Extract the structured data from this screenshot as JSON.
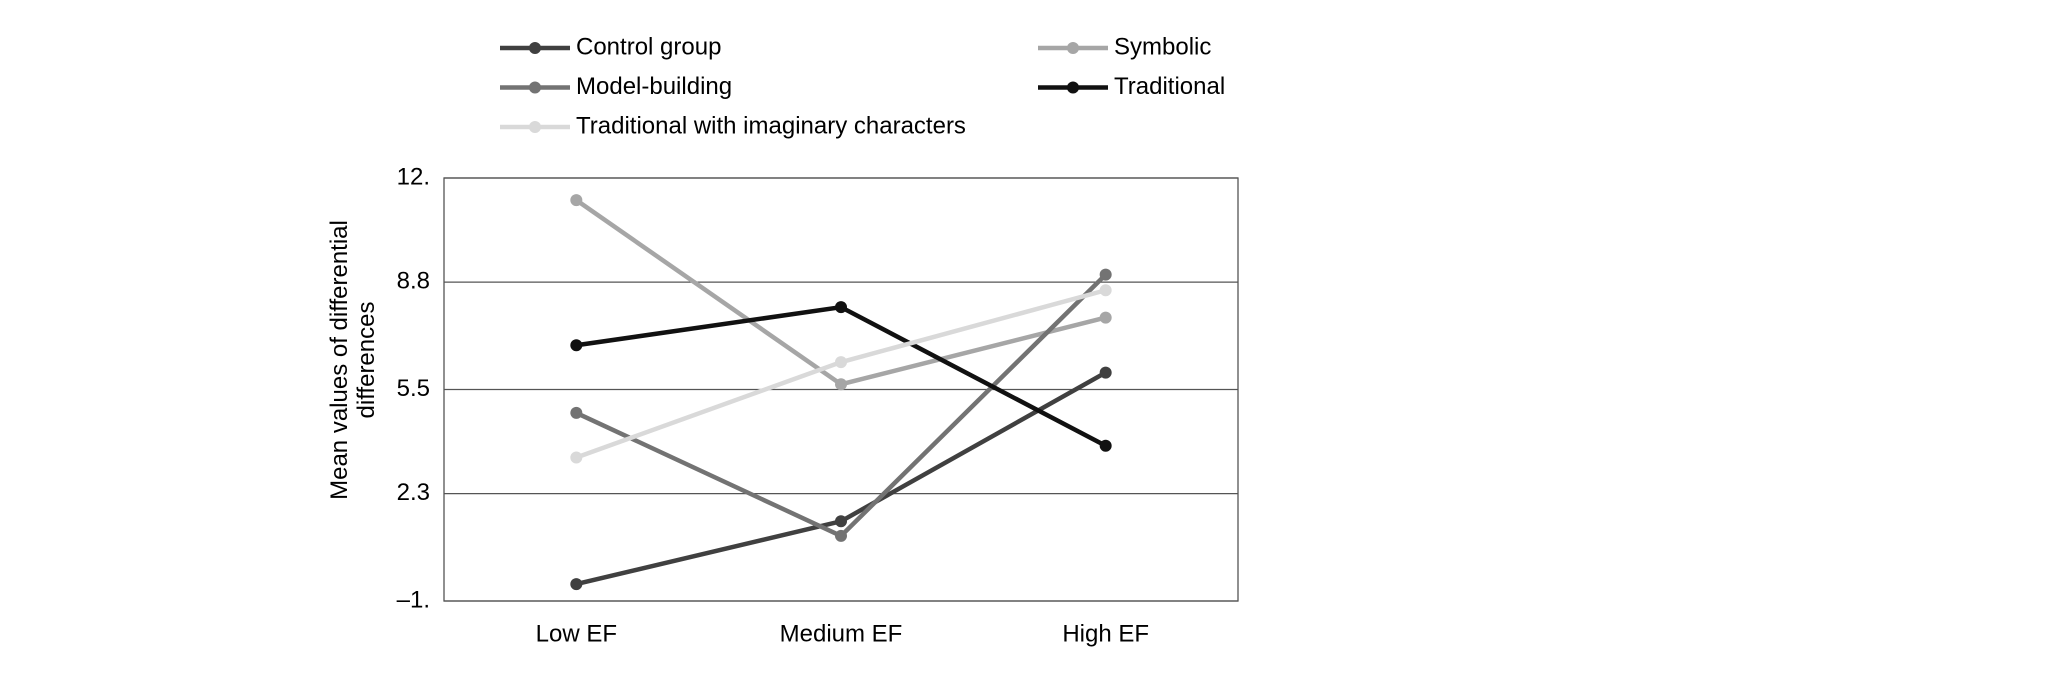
{
  "chart_data": {
    "type": "line",
    "y_label": "Mean values of differential differences",
    "categories": [
      "Low EF",
      "Medium EF",
      "High EF"
    ],
    "series": [
      {
        "name": "Control group",
        "color": "#404040",
        "values": [
          -0.48,
          1.45,
          6.02
        ]
      },
      {
        "name": "Symbolic",
        "color": "#a6a6a6",
        "values": [
          11.32,
          5.66,
          7.71
        ]
      },
      {
        "name": "Model-building",
        "color": "#737373",
        "values": [
          4.78,
          1.0,
          9.03
        ]
      },
      {
        "name": "Traditional",
        "color": "#111111",
        "values": [
          6.86,
          8.03,
          3.77
        ]
      },
      {
        "name": "Traditional with imaginary characters",
        "color": "#d9d9d9",
        "values": [
          3.41,
          6.34,
          8.55
        ]
      }
    ],
    "ylim": [
      -1,
      12
    ],
    "yticks": [
      {
        "value": -1,
        "label": "–1."
      },
      2.3,
      5.5,
      8.8,
      {
        "value": 12,
        "label": "12."
      }
    ],
    "grid": true
  }
}
